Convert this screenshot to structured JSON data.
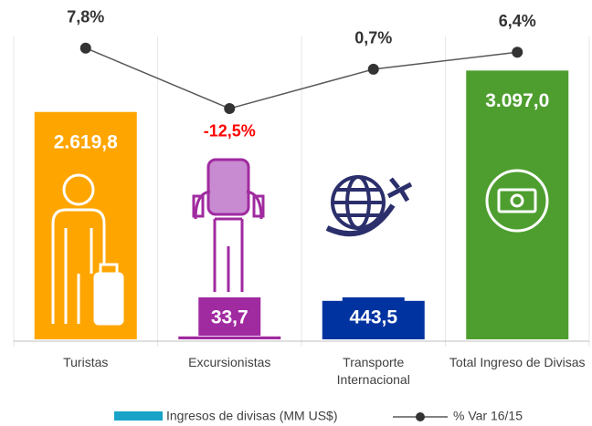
{
  "chart_data": {
    "type": "bar_line",
    "categories": [
      "Turistas",
      "Excursionistas",
      "Transporte Internacional",
      "Total Ingreso de Divisas"
    ],
    "series": [
      {
        "name": "Ingresos de divisas (MM US$)",
        "color": "#1aa3c8",
        "colors": [
          "#ffa500",
          "#a02aa0",
          "#0033a0",
          "#4e9e2f"
        ],
        "values": [
          2619.8,
          33.7,
          443.5,
          3097.0
        ],
        "value_labels": [
          "2.619,8",
          "33,7",
          "443,5",
          "3.097,0"
        ]
      },
      {
        "name": "% Var 16/15",
        "type": "line",
        "axis": "y2",
        "color": "#595959",
        "marker_color": "#333333",
        "negative_color": "#ff0000",
        "values": [
          7.8,
          -12.5,
          0.7,
          6.4
        ],
        "value_labels": [
          "7,8%",
          "-12,5%",
          "0,7%",
          "6,4%"
        ]
      }
    ],
    "ylim": [
      0,
      3500
    ],
    "y2lim": [
      -90,
      12
    ]
  }
}
